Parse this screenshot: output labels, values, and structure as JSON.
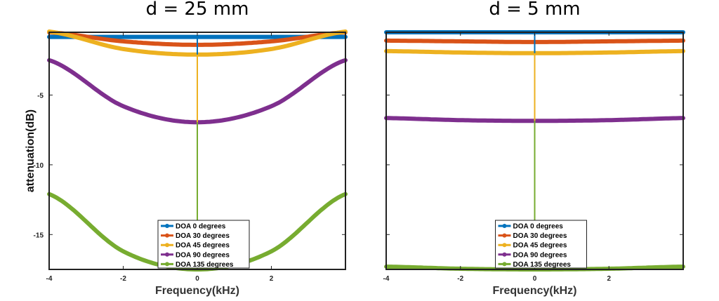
{
  "chart_data": [
    {
      "type": "line",
      "title": "d = 25 mm",
      "xlabel": "Frequency(kHz)",
      "ylabel": "attenuation(dB)",
      "xlim": [
        -4,
        4
      ],
      "ylim": [
        -17.5,
        -0.5
      ],
      "xticks": [
        -4,
        -2,
        0,
        2
      ],
      "yticks": [
        -5,
        -10,
        -15
      ],
      "legend_position": "bottom-center",
      "series": [
        {
          "name": "DOA 0 degrees",
          "color": "#0072BD",
          "x": [
            -4,
            -2,
            0,
            2,
            4
          ],
          "values": [
            -0.83,
            -0.83,
            -0.83,
            -0.83,
            -0.83
          ],
          "vline": true
        },
        {
          "name": "DOA 30 degrees",
          "color": "#D95319",
          "x": [
            -4,
            -2,
            0,
            2,
            4
          ],
          "values": [
            -0.5,
            -1.15,
            -1.4,
            -1.15,
            -0.5
          ],
          "vline": false
        },
        {
          "name": "DOA 45 degrees",
          "color": "#EDB120",
          "x": [
            -4,
            -2,
            0,
            2,
            4
          ],
          "values": [
            -0.45,
            -1.7,
            -2.1,
            -1.7,
            -0.45
          ],
          "vline": true
        },
        {
          "name": "DOA 90 degrees",
          "color": "#7E2F8E",
          "x": [
            -4,
            -2,
            0,
            2,
            4
          ],
          "values": [
            -2.5,
            -5.8,
            -6.95,
            -5.8,
            -2.5
          ],
          "vline": false
        },
        {
          "name": "DOA 135 degrees",
          "color": "#77AC30",
          "x": [
            -4,
            -2,
            0,
            2,
            4
          ],
          "values": [
            -12.1,
            -16.2,
            -17.5,
            -16.2,
            -12.1
          ],
          "vline": true
        }
      ]
    },
    {
      "type": "line",
      "title": "d = 5 mm",
      "xlabel": "Frequency(kHz)",
      "ylabel": "",
      "xlim": [
        -4,
        4
      ],
      "ylim": [
        -17.5,
        -0.5
      ],
      "xticks": [
        -4,
        -2,
        0,
        2
      ],
      "yticks": [],
      "legend_position": "bottom-center",
      "series": [
        {
          "name": "DOA 0 degrees",
          "color": "#0072BD",
          "x": [
            -4,
            -2,
            0,
            2,
            4
          ],
          "values": [
            -0.5,
            -0.5,
            -0.5,
            -0.5,
            -0.5
          ],
          "vline": true
        },
        {
          "name": "DOA 30 degrees",
          "color": "#D95319",
          "x": [
            -4,
            -2,
            0,
            2,
            4
          ],
          "values": [
            -1.1,
            -1.15,
            -1.2,
            -1.15,
            -1.1
          ],
          "vline": false
        },
        {
          "name": "DOA 45 degrees",
          "color": "#EDB120",
          "x": [
            -4,
            -2,
            0,
            2,
            4
          ],
          "values": [
            -1.85,
            -1.95,
            -2.0,
            -1.95,
            -1.85
          ],
          "vline": true
        },
        {
          "name": "DOA 90 degrees",
          "color": "#7E2F8E",
          "x": [
            -4,
            -2,
            0,
            2,
            4
          ],
          "values": [
            -6.65,
            -6.8,
            -6.85,
            -6.8,
            -6.65
          ],
          "vline": false
        },
        {
          "name": "DOA 135 degrees",
          "color": "#77AC30",
          "x": [
            -4,
            -2,
            0,
            2,
            4
          ],
          "values": [
            -17.3,
            -17.45,
            -17.5,
            -17.45,
            -17.3
          ],
          "vline": true
        }
      ]
    }
  ]
}
